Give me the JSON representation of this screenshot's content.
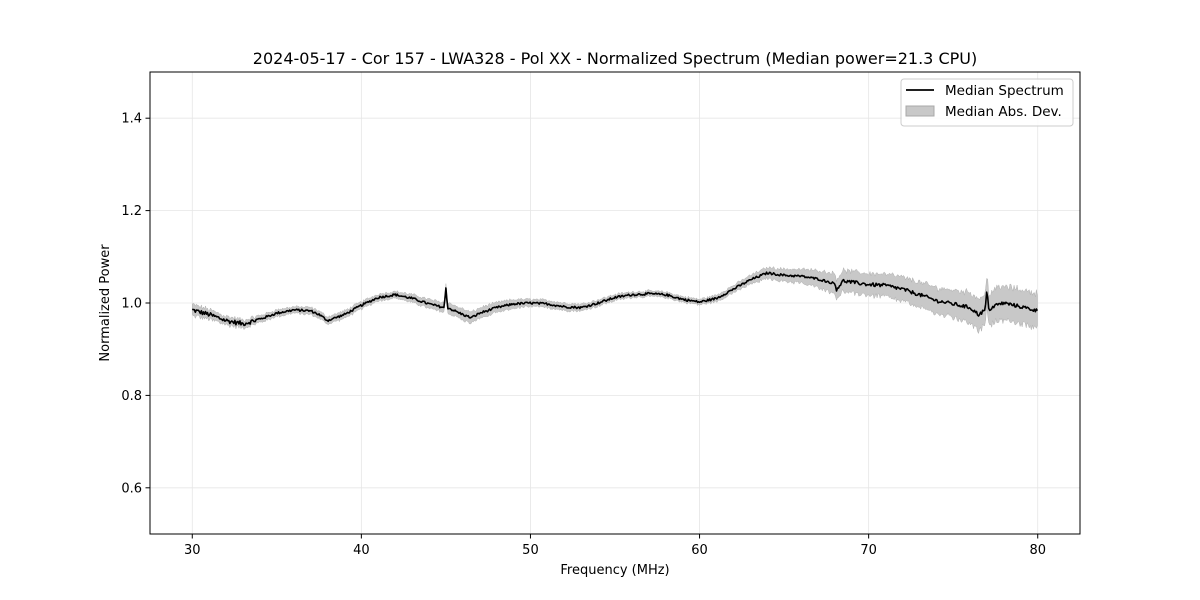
{
  "chart_data": {
    "type": "line",
    "title": "2024-05-17 - Cor 157 - LWA328 - Pol XX - Normalized Spectrum (Median power=21.3 CPU)",
    "xlabel": "Frequency (MHz)",
    "ylabel": "Normalized Power",
    "xlim": [
      27.5,
      82.5
    ],
    "ylim": [
      0.5,
      1.5
    ],
    "xticks": [
      30,
      40,
      50,
      60,
      70,
      80
    ],
    "yticks": [
      0.6,
      0.8,
      1.0,
      1.2,
      1.4
    ],
    "xtick_labels": [
      "30",
      "40",
      "50",
      "60",
      "70",
      "80"
    ],
    "ytick_labels": [
      "0.6",
      "0.8",
      "1.0",
      "1.2",
      "1.4"
    ],
    "grid": true,
    "legend_position": "top-right",
    "legend": [
      "Median Spectrum",
      "Median Abs. Dev."
    ],
    "series": [
      {
        "name": "Median Spectrum",
        "color": "#000000",
        "x": [
          30,
          31,
          32,
          33,
          34,
          35,
          36,
          37,
          37.5,
          38,
          39,
          40,
          41,
          42,
          43,
          44,
          44.9,
          45,
          45.1,
          46,
          46.5,
          47,
          48,
          49,
          50,
          51,
          52,
          53,
          54,
          55,
          56,
          57,
          58,
          59,
          60,
          61,
          62,
          63,
          64,
          65,
          66,
          67,
          68,
          68.1,
          68.5,
          69,
          70,
          71,
          72,
          73,
          73.5,
          74,
          75,
          76,
          76.5,
          76.9,
          77,
          77.1,
          77.5,
          78,
          79,
          80
        ],
        "values": [
          0.985,
          0.975,
          0.962,
          0.955,
          0.965,
          0.978,
          0.985,
          0.983,
          0.975,
          0.962,
          0.975,
          0.995,
          1.012,
          1.018,
          1.01,
          0.998,
          0.99,
          1.032,
          0.99,
          0.975,
          0.968,
          0.978,
          0.99,
          0.998,
          1.0,
          0.998,
          0.992,
          0.99,
          1.0,
          1.012,
          1.018,
          1.02,
          1.018,
          1.008,
          1.002,
          1.01,
          1.03,
          1.05,
          1.065,
          1.06,
          1.058,
          1.052,
          1.042,
          1.03,
          1.048,
          1.045,
          1.04,
          1.038,
          1.03,
          1.018,
          1.012,
          1.005,
          0.998,
          0.99,
          0.975,
          0.985,
          1.032,
          0.985,
          0.995,
          1.0,
          0.992,
          0.983
        ]
      },
      {
        "name": "Median Abs. Dev.",
        "color": "#c8c8c8",
        "x": [
          30,
          33,
          36,
          38,
          40,
          42,
          44,
          46,
          48,
          50,
          52,
          54,
          56,
          58,
          60,
          62,
          64,
          66,
          68,
          70,
          72,
          74,
          76,
          77,
          78,
          80
        ],
        "deviation": [
          0.012,
          0.008,
          0.007,
          0.008,
          0.008,
          0.007,
          0.01,
          0.012,
          0.011,
          0.008,
          0.008,
          0.007,
          0.006,
          0.006,
          0.006,
          0.008,
          0.012,
          0.015,
          0.022,
          0.024,
          0.026,
          0.028,
          0.033,
          0.035,
          0.036,
          0.038
        ]
      }
    ]
  }
}
